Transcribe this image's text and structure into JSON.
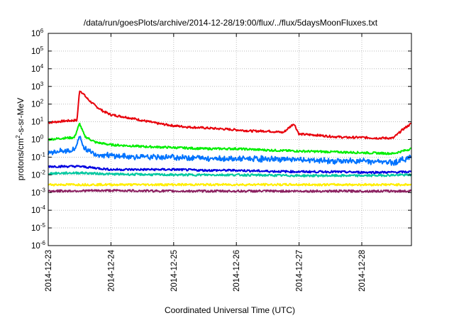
{
  "chart_data": {
    "type": "line",
    "title": "/data/run/goesPlots/archive/2014-12-28/19:00/flux/../flux/5daysMoonFluxes.txt",
    "xlabel": "Coordinated Universal Time (UTC)",
    "ylabel": "protons/cm2-s-sr-MeV",
    "ylabel_parts": {
      "base": "protons/cm",
      "exp": "2",
      "rest": "-s-sr-MeV"
    },
    "yscale": "log",
    "ylim": [
      "1e-6",
      "1e6"
    ],
    "xlim": [
      "2014-12-23",
      "2014-12-28 19:00"
    ],
    "grid": true,
    "x_ticks": [
      "2014-12-23",
      "2014-12-24",
      "2014-12-25",
      "2014-12-26",
      "2014-12-27",
      "2014-12-28"
    ],
    "y_ticks": [
      {
        "value": 1e-06,
        "base": "10",
        "exp": "-6"
      },
      {
        "value": 1e-05,
        "base": "10",
        "exp": "-5"
      },
      {
        "value": 0.0001,
        "base": "10",
        "exp": "-4"
      },
      {
        "value": 0.001,
        "base": "10",
        "exp": "-3"
      },
      {
        "value": 0.01,
        "base": "10",
        "exp": "-2"
      },
      {
        "value": 0.1,
        "base": "10",
        "exp": "-1"
      },
      {
        "value": 1,
        "base": "10",
        "exp": "0"
      },
      {
        "value": 10,
        "base": "10",
        "exp": "1"
      },
      {
        "value": 100,
        "base": "10",
        "exp": "2"
      },
      {
        "value": 1000,
        "base": "10",
        "exp": "3"
      },
      {
        "value": 10000,
        "base": "10",
        "exp": "4"
      },
      {
        "value": 100000,
        "base": "10",
        "exp": "5"
      },
      {
        "value": 1000000,
        "base": "10",
        "exp": "6"
      }
    ],
    "series": [
      {
        "color": "#e8000b",
        "x": [
          "2014-12-23 00:00",
          "2014-12-23 06:00",
          "2014-12-23 10:00",
          "2014-12-23 11:00",
          "2014-12-23 12:00",
          "2014-12-23 13:00",
          "2014-12-23 15:00",
          "2014-12-23 18:00",
          "2014-12-23 21:00",
          "2014-12-24 00:00",
          "2014-12-24 06:00",
          "2014-12-24 12:00",
          "2014-12-24 18:00",
          "2014-12-25 00:00",
          "2014-12-25 06:00",
          "2014-12-25 12:00",
          "2014-12-25 18:00",
          "2014-12-26 00:00",
          "2014-12-26 06:00",
          "2014-12-26 12:00",
          "2014-12-26 18:00",
          "2014-12-26 22:00",
          "2014-12-27 00:00",
          "2014-12-27 06:00",
          "2014-12-27 12:00",
          "2014-12-27 18:00",
          "2014-12-28 00:00",
          "2014-12-28 06:00",
          "2014-12-28 12:00",
          "2014-12-28 16:00",
          "2014-12-28 19:00"
        ],
        "values": [
          9,
          11,
          12,
          12,
          600,
          450,
          200,
          80,
          40,
          25,
          18,
          12,
          8,
          6,
          5,
          4.5,
          4,
          3.5,
          3,
          3,
          2.5,
          8,
          2,
          1.8,
          1.5,
          1.3,
          1.3,
          1.2,
          1.2,
          4,
          8
        ]
      },
      {
        "color": "#00ee00",
        "x": [
          "2014-12-23 00:00",
          "2014-12-23 06:00",
          "2014-12-23 10:00",
          "2014-12-23 12:00",
          "2014-12-23 14:00",
          "2014-12-23 18:00",
          "2014-12-24 00:00",
          "2014-12-24 06:00",
          "2014-12-24 12:00",
          "2014-12-25 00:00",
          "2014-12-25 12:00",
          "2014-12-26 00:00",
          "2014-12-26 12:00",
          "2014-12-27 00:00",
          "2014-12-27 12:00",
          "2014-12-28 00:00",
          "2014-12-28 12:00",
          "2014-12-28 19:00"
        ],
        "values": [
          1,
          1.2,
          1.3,
          8,
          1.5,
          0.7,
          0.5,
          0.45,
          0.4,
          0.35,
          0.3,
          0.3,
          0.25,
          0.22,
          0.2,
          0.18,
          0.16,
          0.3
        ]
      },
      {
        "color": "#0073ff",
        "x": [
          "2014-12-23 00:00",
          "2014-12-23 06:00",
          "2014-12-23 10:00",
          "2014-12-23 12:00",
          "2014-12-23 14:00",
          "2014-12-23 18:00",
          "2014-12-24 00:00",
          "2014-12-24 12:00",
          "2014-12-25 00:00",
          "2014-12-25 12:00",
          "2014-12-26 00:00",
          "2014-12-26 12:00",
          "2014-12-27 00:00",
          "2014-12-27 12:00",
          "2014-12-28 00:00",
          "2014-12-28 12:00",
          "2014-12-28 19:00"
        ],
        "values": [
          0.2,
          0.22,
          0.25,
          1.5,
          0.3,
          0.15,
          0.12,
          0.1,
          0.1,
          0.09,
          0.08,
          0.08,
          0.07,
          0.06,
          0.06,
          0.05,
          0.1
        ]
      },
      {
        "color": "#0000e0",
        "x": [
          "2014-12-23 00:00",
          "2014-12-23 12:00",
          "2014-12-24 00:00",
          "2014-12-24 12:00",
          "2014-12-25 00:00",
          "2014-12-25 12:00",
          "2014-12-26 00:00",
          "2014-12-26 12:00",
          "2014-12-27 00:00",
          "2014-12-27 12:00",
          "2014-12-28 00:00",
          "2014-12-28 12:00",
          "2014-12-28 19:00"
        ],
        "values": [
          0.03,
          0.03,
          0.02,
          0.02,
          0.02,
          0.018,
          0.018,
          0.016,
          0.015,
          0.015,
          0.014,
          0.014,
          0.015
        ]
      },
      {
        "color": "#00c8a0",
        "x": [
          "2014-12-23 00:00",
          "2014-12-23 12:00",
          "2014-12-24 00:00",
          "2014-12-25 00:00",
          "2014-12-26 00:00",
          "2014-12-27 00:00",
          "2014-12-28 00:00",
          "2014-12-28 19:00"
        ],
        "values": [
          0.012,
          0.013,
          0.011,
          0.01,
          0.01,
          0.009,
          0.009,
          0.01
        ]
      },
      {
        "color": "#ffee00",
        "x": [
          "2014-12-23 00:00",
          "2014-12-24 00:00",
          "2014-12-25 00:00",
          "2014-12-26 00:00",
          "2014-12-27 00:00",
          "2014-12-28 00:00",
          "2014-12-28 19:00"
        ],
        "values": [
          0.0028,
          0.0028,
          0.0028,
          0.0028,
          0.0028,
          0.0028,
          0.0028
        ]
      },
      {
        "color": "#8b2060",
        "x": [
          "2014-12-23 00:00",
          "2014-12-24 00:00",
          "2014-12-25 00:00",
          "2014-12-26 00:00",
          "2014-12-27 00:00",
          "2014-12-28 00:00",
          "2014-12-28 19:00"
        ],
        "values": [
          0.0012,
          0.0013,
          0.0012,
          0.0012,
          0.0012,
          0.0012,
          0.0012
        ]
      }
    ]
  }
}
